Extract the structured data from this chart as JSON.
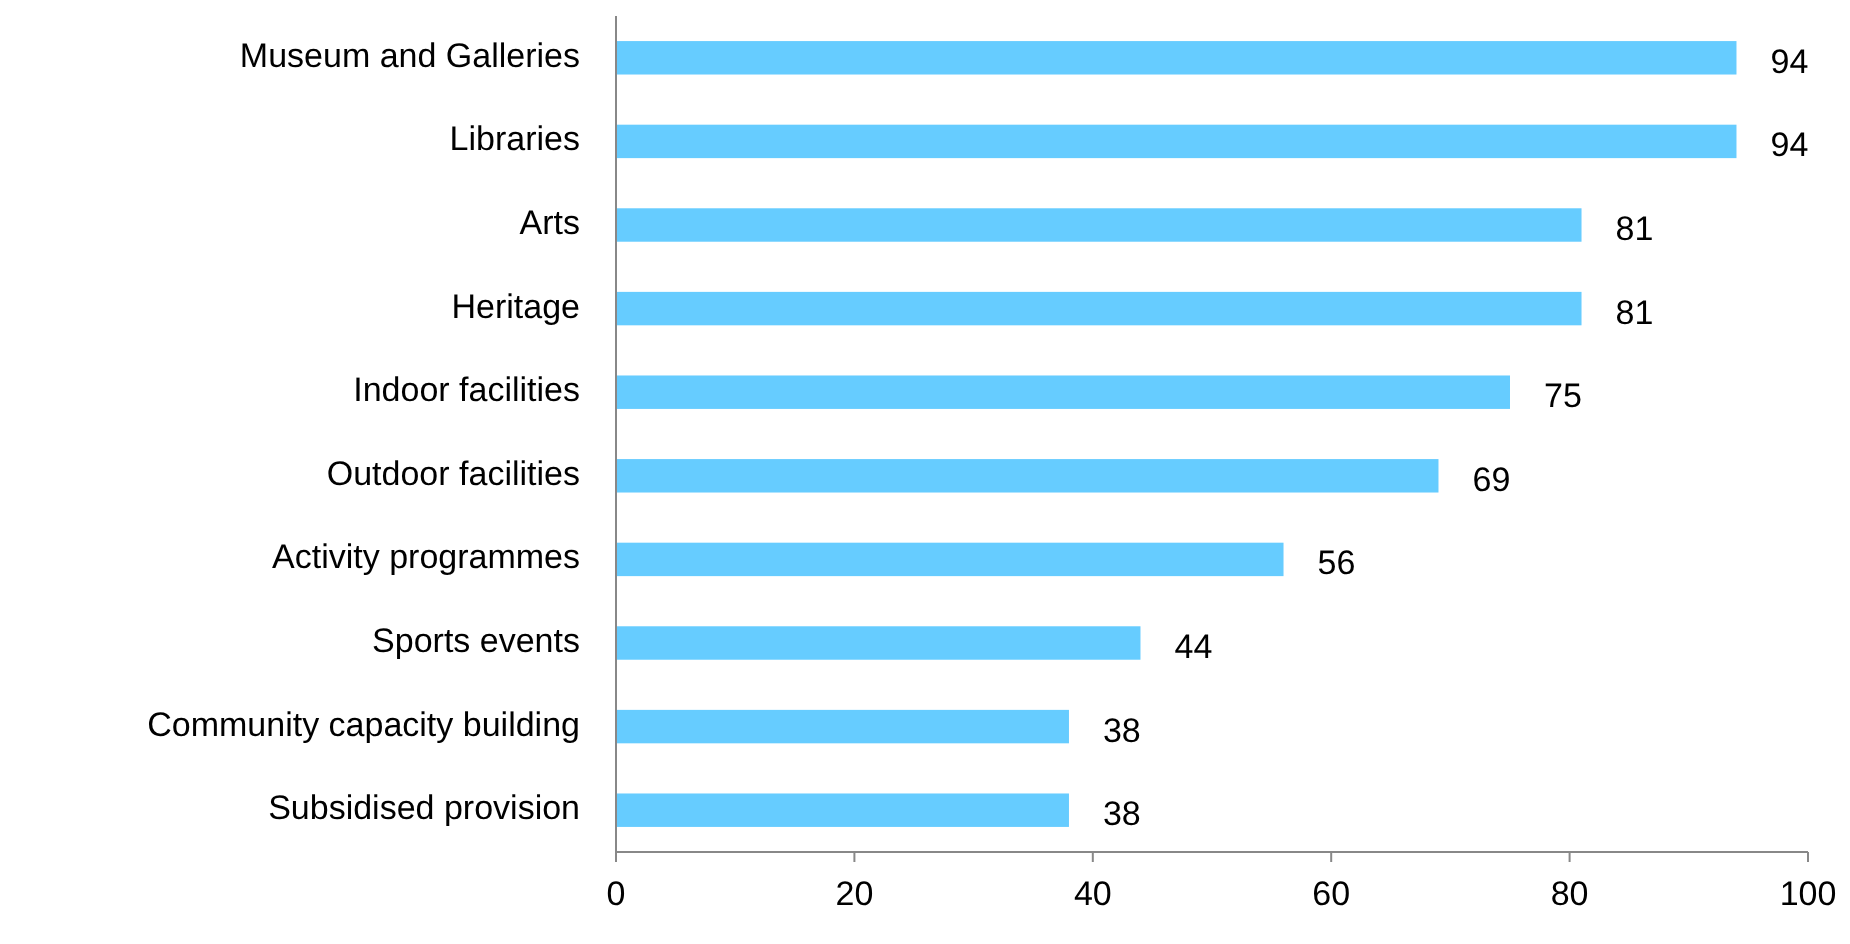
{
  "chart_data": {
    "type": "bar",
    "orientation": "horizontal",
    "categories": [
      "Museum and Galleries",
      "Libraries",
      "Arts",
      "Heritage",
      "Indoor facilities",
      "Outdoor facilities",
      "Activity programmes",
      "Sports events",
      "Community capacity building",
      "Subsidised provision"
    ],
    "values": [
      94,
      94,
      81,
      81,
      75,
      69,
      56,
      44,
      38,
      38
    ],
    "color": "#66ccff",
    "xlim": [
      0,
      100
    ],
    "xticks": [
      0,
      20,
      40,
      60,
      80,
      100
    ],
    "data_labels": true
  }
}
